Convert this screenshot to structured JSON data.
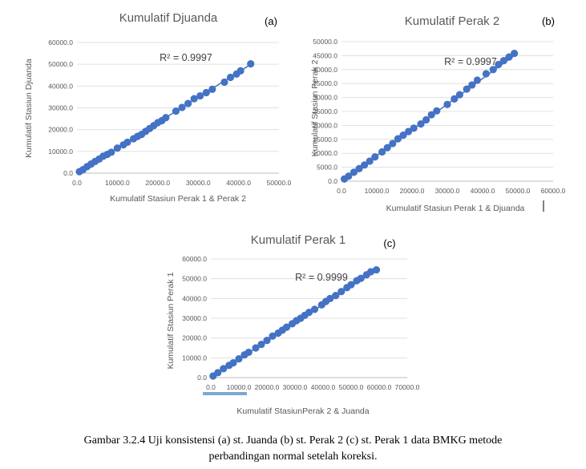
{
  "chart_data": [
    {
      "id": "a",
      "type": "scatter",
      "panel_label": "(a)",
      "title": "Kumulatif Djuanda",
      "xlabel": "Kumulatif Stasiun Perak 1 & Perak 2",
      "ylabel": "Kumulatif Stasiun Djuanda",
      "annotation": "R² = 0.9997",
      "xlim": [
        0,
        50000
      ],
      "ylim": [
        0,
        60000
      ],
      "xticks": [
        "0.0",
        "10000.0",
        "20000.0",
        "30000.0",
        "40000.0",
        "50000.0"
      ],
      "yticks": [
        "0.0",
        "10000.0",
        "20000.0",
        "30000.0",
        "40000.0",
        "50000.0",
        "60000.0"
      ],
      "grid": "horizontal",
      "marker_color": "#4472C4",
      "trendline_color": "#4472C4",
      "trendline": {
        "x": [
          0,
          43500
        ],
        "y": [
          0,
          50500
        ]
      },
      "points": [
        [
          600,
          700
        ],
        [
          1500,
          1600
        ],
        [
          2500,
          3000
        ],
        [
          3500,
          4200
        ],
        [
          4500,
          5400
        ],
        [
          5500,
          6500
        ],
        [
          6500,
          7800
        ],
        [
          7500,
          8600
        ],
        [
          8500,
          9600
        ],
        [
          10000,
          11500
        ],
        [
          11500,
          13000
        ],
        [
          12500,
          14200
        ],
        [
          14000,
          15800
        ],
        [
          15000,
          16900
        ],
        [
          16000,
          17800
        ],
        [
          17000,
          19200
        ],
        [
          18000,
          20500
        ],
        [
          19000,
          21800
        ],
        [
          20000,
          23200
        ],
        [
          21000,
          24100
        ],
        [
          22000,
          25500
        ],
        [
          24500,
          28500
        ],
        [
          26000,
          30200
        ],
        [
          27500,
          32000
        ],
        [
          29000,
          34200
        ],
        [
          30500,
          35500
        ],
        [
          32000,
          37000
        ],
        [
          33500,
          38500
        ],
        [
          36500,
          41800
        ],
        [
          38000,
          44000
        ],
        [
          39500,
          45500
        ],
        [
          40500,
          47000
        ],
        [
          43000,
          50200
        ]
      ]
    },
    {
      "id": "b",
      "type": "scatter",
      "panel_label": "(b)",
      "title": "Kumulatif Perak 2",
      "xlabel": "Kumulatif Stasiun Perak 1 & Djuanda",
      "ylabel": "Kumulatif Stasiun Perak 2",
      "annotation": "R² = 0.9997",
      "xlim": [
        0,
        60000
      ],
      "ylim": [
        0,
        50000
      ],
      "xticks": [
        "0.0",
        "10000.0",
        "20000.0",
        "30000.0",
        "40000.0",
        "50000.0",
        "60000.0"
      ],
      "yticks": [
        "0.0",
        "5000.0",
        "10000.0",
        "15000.0",
        "20000.0",
        "25000.0",
        "30000.0",
        "35000.0",
        "40000.0",
        "45000.0",
        "50000.0"
      ],
      "grid": "horizontal",
      "marker_color": "#4472C4",
      "trendline_color": "#4472C4",
      "trendline": {
        "x": [
          0,
          50000
        ],
        "y": [
          0,
          46000
        ]
      },
      "points": [
        [
          800,
          800
        ],
        [
          2000,
          1800
        ],
        [
          3500,
          3200
        ],
        [
          5000,
          4500
        ],
        [
          6500,
          5800
        ],
        [
          8000,
          7200
        ],
        [
          9500,
          8700
        ],
        [
          11500,
          10500
        ],
        [
          13000,
          12000
        ],
        [
          14500,
          13500
        ],
        [
          16000,
          15200
        ],
        [
          17500,
          16500
        ],
        [
          19000,
          17800
        ],
        [
          20500,
          19000
        ],
        [
          22500,
          20500
        ],
        [
          24000,
          22000
        ],
        [
          25500,
          23800
        ],
        [
          27000,
          25200
        ],
        [
          30000,
          27500
        ],
        [
          32000,
          29500
        ],
        [
          33500,
          31000
        ],
        [
          35500,
          33000
        ],
        [
          37000,
          34500
        ],
        [
          38500,
          36200
        ],
        [
          41000,
          38500
        ],
        [
          43000,
          40000
        ],
        [
          44500,
          41800
        ],
        [
          46000,
          43200
        ],
        [
          47500,
          44500
        ],
        [
          49000,
          45800
        ]
      ]
    },
    {
      "id": "c",
      "type": "scatter",
      "panel_label": "(c)",
      "title": "Kumulatif Perak 1",
      "xlabel": "Kumulatif  StasiunPerak 2 & Juanda",
      "ylabel": "Kumulatif Stasiun Perak 1",
      "annotation": "R² = 0.9999",
      "xlim": [
        0,
        70000
      ],
      "ylim": [
        0,
        60000
      ],
      "xticks": [
        "0.0",
        "10000.0",
        "20000.0",
        "30000.0",
        "40000.0",
        "50000.0",
        "60000.0",
        "70000.0"
      ],
      "yticks": [
        "0.0",
        "10000.0",
        "20000.0",
        "30000.0",
        "40000.0",
        "50000.0",
        "60000.0"
      ],
      "grid": "horizontal",
      "marker_color": "#4472C4",
      "trendline_color": "#4472C4",
      "trendline": {
        "x": [
          0,
          59000
        ],
        "y": [
          0,
          54500
        ]
      },
      "points": [
        [
          800,
          800
        ],
        [
          2500,
          2500
        ],
        [
          4500,
          4500
        ],
        [
          6500,
          6200
        ],
        [
          8000,
          7500
        ],
        [
          10000,
          9500
        ],
        [
          12000,
          11500
        ],
        [
          13500,
          12800
        ],
        [
          16000,
          15000
        ],
        [
          18000,
          16800
        ],
        [
          20000,
          18800
        ],
        [
          22000,
          21000
        ],
        [
          24000,
          22500
        ],
        [
          25500,
          24000
        ],
        [
          27000,
          25500
        ],
        [
          29000,
          27200
        ],
        [
          30500,
          28800
        ],
        [
          32000,
          30000
        ],
        [
          33500,
          31500
        ],
        [
          35000,
          33000
        ],
        [
          37000,
          34500
        ],
        [
          39500,
          36800
        ],
        [
          41000,
          38500
        ],
        [
          42500,
          40000
        ],
        [
          44500,
          41500
        ],
        [
          46500,
          43500
        ],
        [
          48500,
          45500
        ],
        [
          50000,
          47000
        ],
        [
          52000,
          49000
        ],
        [
          53500,
          50200
        ],
        [
          55500,
          52000
        ],
        [
          57000,
          53500
        ],
        [
          59000,
          54500
        ]
      ]
    }
  ],
  "caption": {
    "line1": "Gambar 3.2.4 Uji konsistensi (a) st. Juanda (b) st. Perak 2 (c) st. Perak 1 data BMKG metode",
    "line2": "perbandingan normal setelah koreksi."
  }
}
